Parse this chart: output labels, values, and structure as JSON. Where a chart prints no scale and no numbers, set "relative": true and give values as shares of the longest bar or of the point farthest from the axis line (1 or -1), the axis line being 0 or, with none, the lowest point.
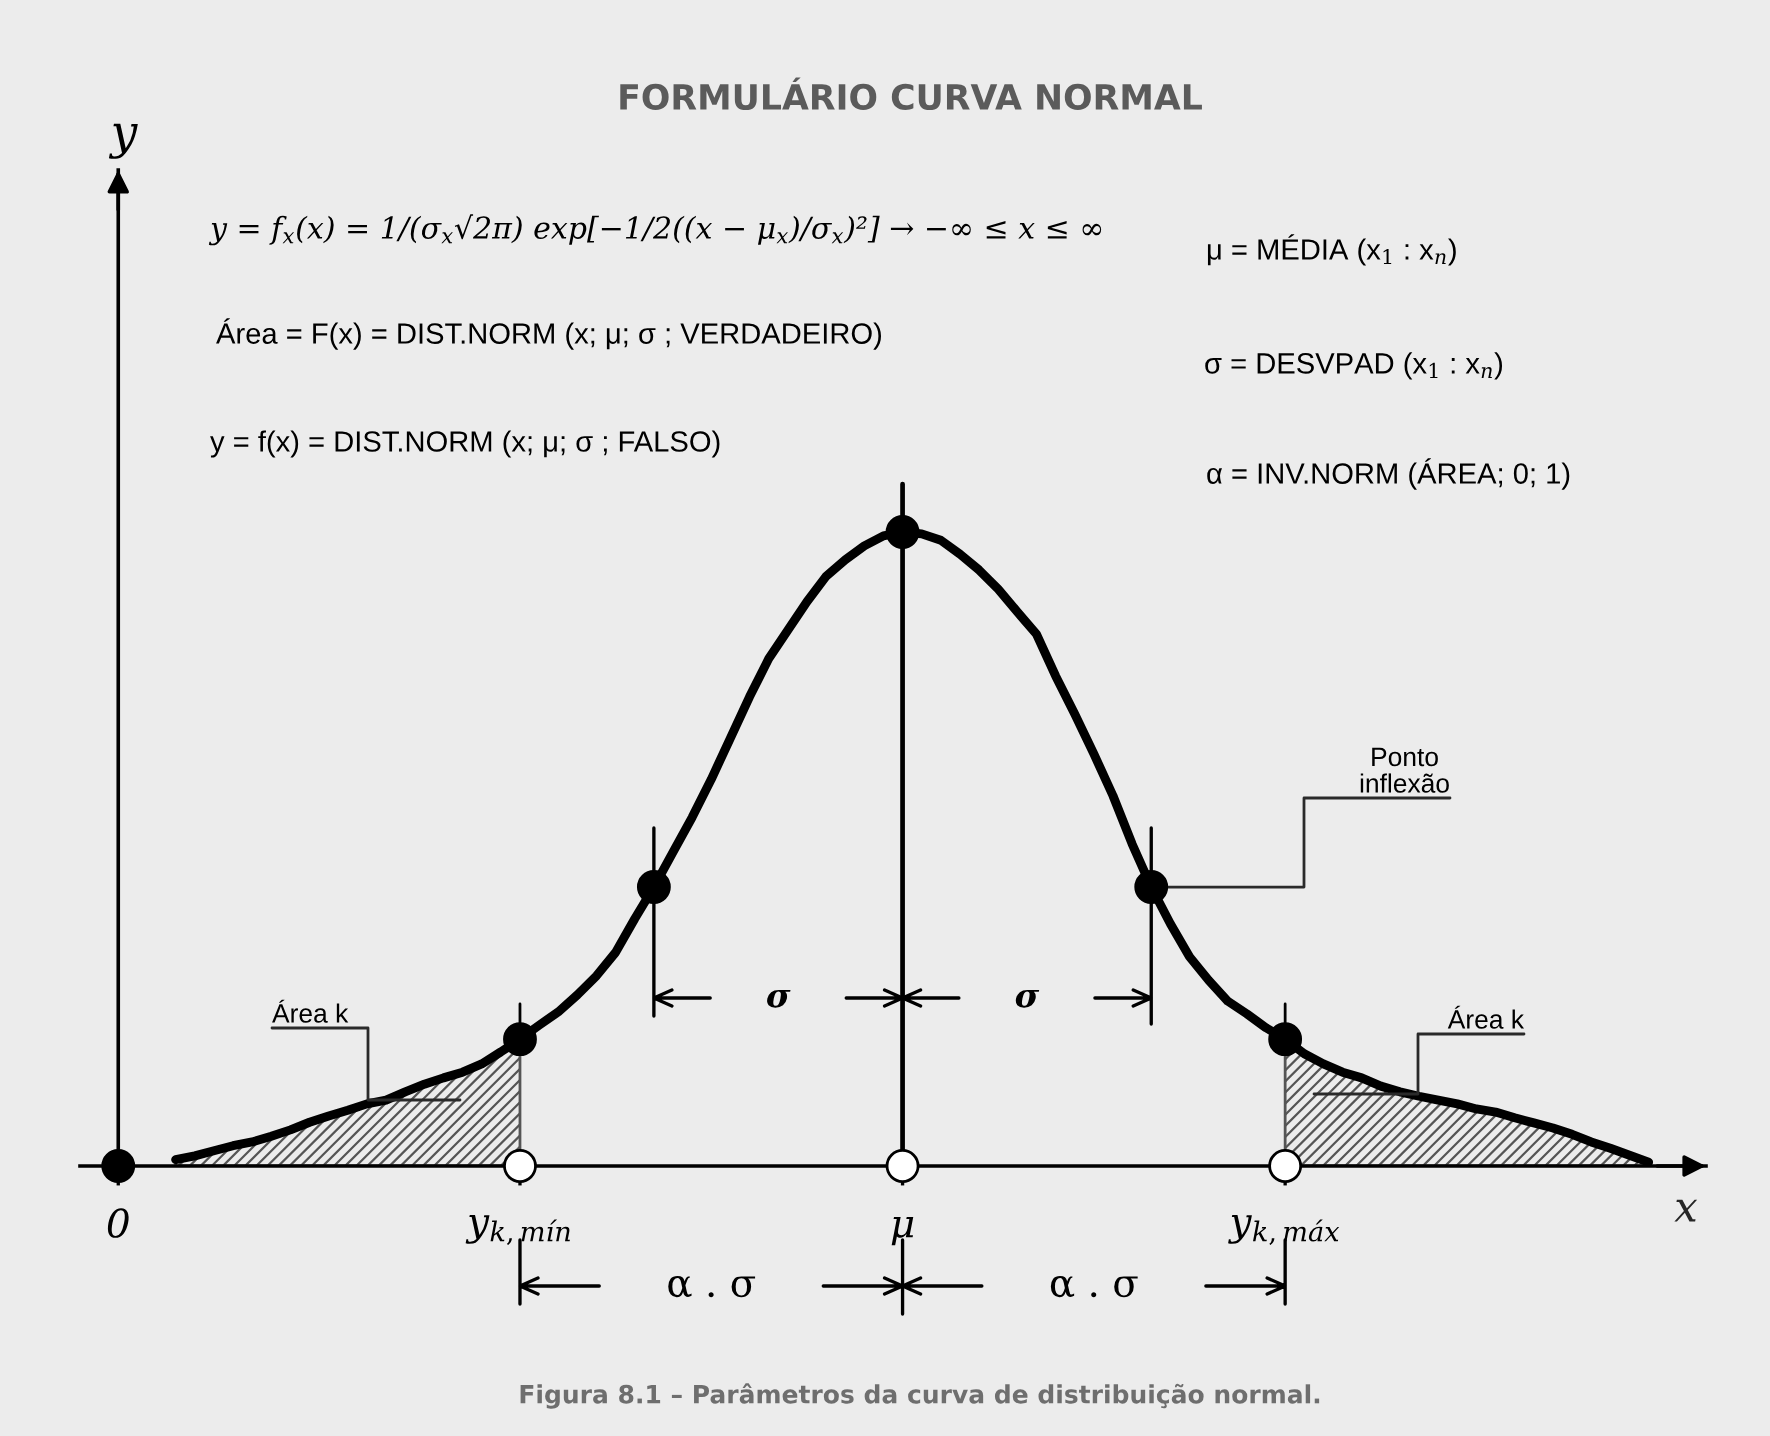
{
  "chart_data": {
    "type": "line",
    "relative": true,
    "title": "FORMULÁRIO CURVA NORMAL",
    "xlabel": "x",
    "categories": [
      "0",
      null,
      null,
      null,
      null,
      null,
      null,
      null,
      null,
      null,
      null,
      null,
      null,
      null,
      null,
      null,
      null,
      null,
      null,
      null,
      null,
      "y$_{k,mín}$",
      null,
      null,
      null,
      null,
      null,
      null,
      null,
      null,
      null,
      null,
      null,
      null,
      null,
      null,
      null,
      null,
      null,
      null,
      null,
      "μ",
      null,
      null,
      null,
      null,
      null,
      null,
      null,
      null,
      null,
      null,
      null,
      null,
      null,
      null,
      null,
      null,
      null,
      null,
      null,
      "y$_{k,máx}$",
      null,
      null,
      null,
      null,
      null,
      null,
      null,
      null,
      null,
      null,
      null,
      null,
      null,
      null,
      null,
      null,
      null,
      null,
      null,
      null,
      null,
      null
    ],
    "series": [
      {
        "type": "area",
        "color": "#555555",
        "values": [
          null,
          null,
          null,
          0.01,
          0.016,
          0.024,
          0.032,
          0.038,
          0.047,
          0.057,
          0.069,
          0.079,
          0.088,
          0.098,
          0.104,
          0.117,
          0.129,
          0.139,
          0.148,
          0.161,
          0.18,
          0.2,
          null,
          null,
          null,
          null,
          null,
          null,
          null,
          null,
          null,
          null,
          null,
          null,
          null,
          null,
          null,
          null,
          null,
          null,
          null,
          null,
          null,
          null,
          null,
          null,
          null,
          null,
          null,
          null,
          null,
          null,
          null,
          null,
          null,
          null,
          null,
          null,
          null,
          null,
          null,
          0.2,
          0.177,
          0.161,
          0.148,
          0.139,
          0.126,
          0.117,
          0.11,
          0.104,
          0.098,
          0.09,
          0.085,
          0.076,
          0.068,
          0.06,
          0.05,
          0.038,
          0.028,
          0.017,
          0.006,
          null,
          null,
          null
        ]
      },
      {
        "color": "#000000",
        "line_style": "solid",
        "values": [
          null,
          null,
          null,
          0.01,
          0.016,
          0.024,
          0.032,
          0.038,
          0.047,
          0.057,
          0.069,
          0.079,
          0.088,
          0.098,
          0.104,
          0.117,
          0.129,
          0.139,
          0.148,
          0.161,
          0.18,
          0.2,
          0.222,
          0.243,
          0.27,
          0.3,
          0.337,
          0.39,
          0.44,
          0.495,
          0.55,
          0.61,
          0.675,
          0.74,
          0.8,
          0.845,
          0.89,
          0.93,
          0.956,
          0.978,
          0.994,
          1,
          0.997,
          0.987,
          0.965,
          0.94,
          0.91,
          0.874,
          0.839,
          0.773,
          0.713,
          0.65,
          0.584,
          0.508,
          0.44,
          0.382,
          0.33,
          0.293,
          0.26,
          0.24,
          0.218,
          0.2,
          0.177,
          0.161,
          0.148,
          0.139,
          0.126,
          0.117,
          0.11,
          0.104,
          0.098,
          0.09,
          0.085,
          0.076,
          0.068,
          0.06,
          0.05,
          0.038,
          0.028,
          0.017,
          0.006,
          null,
          null,
          null
        ]
      },
      {
        "type": "scatter",
        "color": "#000000",
        "marker": "circle",
        "values": [
          0,
          null,
          null,
          null,
          null,
          null,
          null,
          null,
          null,
          null,
          null,
          null,
          null,
          null,
          null,
          null,
          null,
          null,
          null,
          null,
          null,
          0.2,
          null,
          null,
          null,
          null,
          null,
          null,
          0.44,
          null,
          null,
          null,
          null,
          null,
          null,
          null,
          null,
          null,
          null,
          null,
          null,
          1,
          null,
          null,
          null,
          null,
          null,
          null,
          null,
          null,
          null,
          null,
          null,
          null,
          0.44,
          null,
          null,
          null,
          null,
          null,
          null,
          0.2,
          null,
          null,
          null,
          null,
          null,
          null,
          null,
          null,
          null,
          null,
          null,
          null,
          null,
          null,
          null,
          null,
          null,
          null,
          null,
          null,
          null,
          null
        ]
      },
      {
        "type": "scatter",
        "color": "#ffffff",
        "marker": "circle",
        "values": [
          null,
          null,
          null,
          null,
          null,
          null,
          null,
          null,
          null,
          null,
          null,
          null,
          null,
          null,
          null,
          null,
          null,
          null,
          null,
          null,
          null,
          0,
          null,
          null,
          null,
          null,
          null,
          null,
          null,
          null,
          null,
          null,
          null,
          null,
          null,
          null,
          null,
          null,
          null,
          null,
          null,
          0,
          null,
          null,
          null,
          null,
          null,
          null,
          null,
          null,
          null,
          null,
          null,
          null,
          null,
          null,
          null,
          null,
          null,
          null,
          null,
          0,
          null,
          null,
          null,
          null,
          null,
          null,
          null,
          null,
          null,
          null,
          null,
          null,
          null,
          null,
          null,
          null,
          null,
          null,
          null,
          null,
          null,
          null
        ]
      }
    ],
    "ref_lines": [
      {
        "axis": "x",
        "value": "μ",
        "color": "#000000"
      }
    ],
    "annotations": [
      "y = f$_{x}$(x) = 1/(σ$_{x}$√2π) exp[−1/2((x − μ$_{x}$)/σ$_{x}$)²] → −∞ ≤ x ≤ ∞",
      "Área = F(x) = DIST.NORM (x; μ; σ ; VERDADEIRO)",
      "y = f(x) = DIST.NORM (x; μ; σ ; FALSO)",
      "μ = MÉDIA (x$_{1}$ : x$_{n}$)",
      "σ = DESVPAD (x$_{1}$ : x$_{n}$)",
      "α = INV.NORM (ÁREA; 0; 1)",
      "Ponto\ninflexão",
      "Área k",
      "Área k",
      "σ",
      "σ",
      "α . σ",
      "α . σ",
      "Figura 8.1 – Parâmetros da curva de distribuição normal.",
      "y"
    ]
  }
}
